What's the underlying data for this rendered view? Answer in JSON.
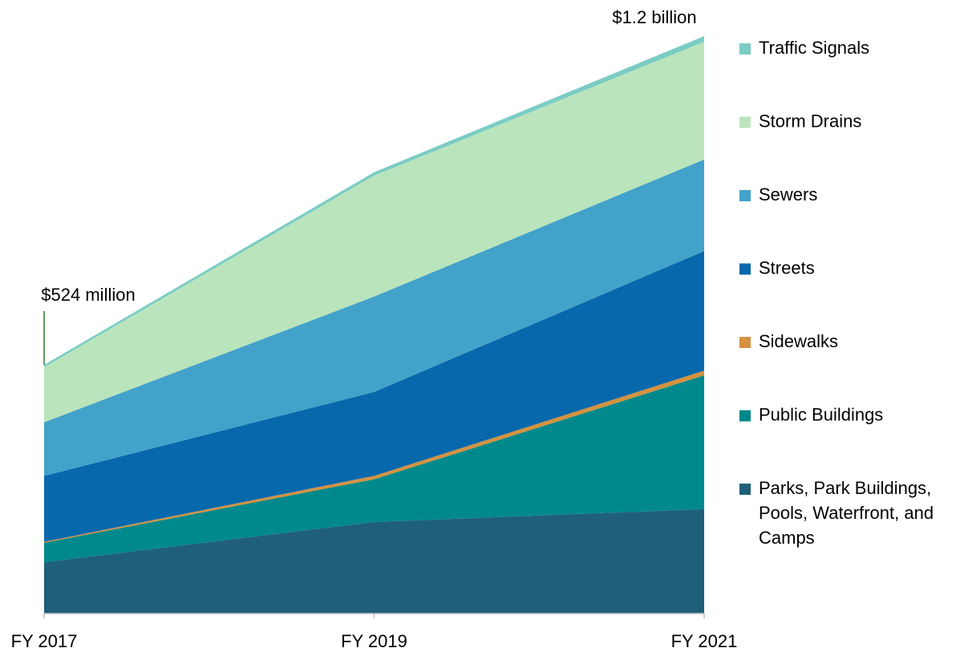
{
  "chart_data": {
    "type": "stacked_area",
    "categories": [
      "FY 2017",
      "FY 2019",
      "FY 2021"
    ],
    "series": [
      {
        "name": "Parks, Park Buildings, Pools, Waterfront, and Camps",
        "color": "#1f5f7a",
        "values": [
          108,
          193,
          220
        ]
      },
      {
        "name": "Public Buildings",
        "color": "#00898c",
        "values": [
          41,
          90,
          282
        ]
      },
      {
        "name": "Sidewalks",
        "color": "#d4923f",
        "values": [
          2,
          7,
          10
        ]
      },
      {
        "name": "Streets",
        "color": "#0868ac",
        "values": [
          139,
          177,
          252
        ]
      },
      {
        "name": "Sewers",
        "color": "#43a2ca",
        "values": [
          113,
          201,
          193
        ]
      },
      {
        "name": "Storm Drains",
        "color": "#bae4bc",
        "values": [
          116,
          255,
          248
        ]
      },
      {
        "name": "Traffic Signals",
        "color": "#7bccc4",
        "values": [
          5,
          7,
          12
        ]
      }
    ],
    "annotations": [
      "$524 million",
      "$1.2 billion"
    ],
    "legend": "right"
  }
}
